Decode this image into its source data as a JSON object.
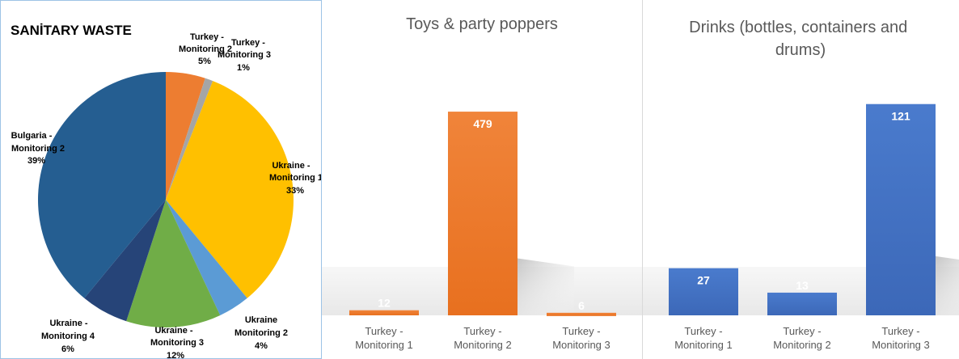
{
  "chart_data": [
    {
      "type": "pie",
      "title": "SANİTARY WASTE",
      "slices": [
        {
          "label": "Turkey - Monitoring 2",
          "pct_text": "5%",
          "value": 5,
          "color": "#ed7d31"
        },
        {
          "label": "Turkey - Monitoring 3",
          "pct_text": "1%",
          "value": 1,
          "color": "#a5a5a5"
        },
        {
          "label": "Ukraine - Monitoring 1",
          "pct_text": "33%",
          "value": 33,
          "color": "#ffc000"
        },
        {
          "label": "Ukraine Monitoring 2",
          "pct_text": "4%",
          "value": 4,
          "color": "#5b9bd5"
        },
        {
          "label": "Ukraine - Monitoring 3",
          "pct_text": "12%",
          "value": 12,
          "color": "#70ad47"
        },
        {
          "label": "Ukraine - Monitoring 4",
          "pct_text": "6%",
          "value": 6,
          "color": "#264478"
        },
        {
          "label": "Bulgaria - Monitoring 2",
          "pct_text": "39%",
          "value": 39,
          "color": "#255e91"
        }
      ]
    },
    {
      "type": "bar",
      "title": "Toys & party poppers",
      "categories": [
        "Turkey - Monitoring 1",
        "Turkey - Monitoring 2",
        "Turkey - Monitoring 3"
      ],
      "values": [
        12,
        479,
        6
      ],
      "color": "#ed7d31",
      "ylim": [
        0,
        540
      ]
    },
    {
      "type": "bar",
      "title": "Drinks (bottles, containers and drums)",
      "categories": [
        "Turkey - Monitoring 1",
        "Turkey - Monitoring 2",
        "Turkey - Monitoring 3"
      ],
      "values": [
        27,
        13,
        121
      ],
      "color": "#4472c4",
      "ylim": [
        0,
        138
      ]
    }
  ]
}
